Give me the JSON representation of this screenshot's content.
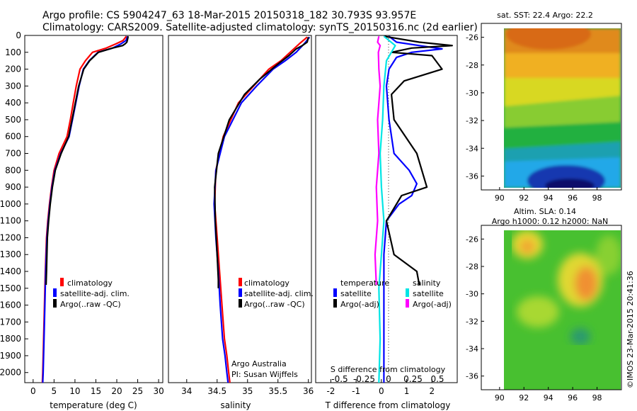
{
  "header": {
    "line1": "Argo profile: CS 5904247_63 18-Mar-2015 20150318_182 30.793S 93.957E",
    "line2": "Climatology: CARS2009. Satellite-adjusted climatology: synTS_20150316.nc (2d earlier)"
  },
  "credit": "©IMOS 23-Mar-2015 20:41:36",
  "chart_data": [
    {
      "type": "line",
      "name": "temperature-profile",
      "xlabel": "temperature (deg C)",
      "ylabel": "",
      "xlim": [
        -2,
        31
      ],
      "ylim": [
        2060,
        0
      ],
      "xticks": [
        0,
        5,
        10,
        15,
        20,
        25,
        30
      ],
      "yticks": [
        0,
        100,
        200,
        300,
        400,
        500,
        600,
        700,
        800,
        900,
        1000,
        1100,
        1200,
        1300,
        1400,
        1500,
        1600,
        1700,
        1800,
        1900,
        2000
      ],
      "legend": [
        "climatology",
        "satellite-adj. clim.",
        "Argo(..raw -QC)"
      ],
      "series": [
        {
          "name": "climatology",
          "color": "#ff0000",
          "x": [
            22.3,
            21.5,
            19.8,
            17.5,
            14.2,
            12.5,
            11.2,
            10.3,
            9.6,
            8.9,
            8.1,
            6.2,
            5.0,
            4.4,
            3.9,
            3.5,
            3.2,
            2.9,
            2.7,
            2.5,
            2.3,
            2.2
          ],
          "y": [
            5,
            30,
            50,
            75,
            100,
            150,
            200,
            300,
            400,
            500,
            600,
            700,
            800,
            900,
            1000,
            1100,
            1200,
            1400,
            1600,
            1800,
            2000,
            2060
          ]
        },
        {
          "name": "satellite-adj. clim.",
          "color": "#0000ff",
          "x": [
            22.6,
            22.2,
            21.0,
            19.0,
            15.5,
            13.4,
            12.0,
            11.0,
            10.2,
            9.4,
            8.6,
            6.6,
            5.2,
            4.5,
            4.0,
            3.6,
            3.3,
            3.0,
            2.8,
            2.6,
            2.4,
            2.3
          ],
          "y": [
            5,
            30,
            50,
            75,
            100,
            150,
            200,
            300,
            400,
            500,
            600,
            700,
            800,
            900,
            1000,
            1100,
            1200,
            1400,
            1600,
            1800,
            2000,
            2060
          ]
        },
        {
          "name": "Argo(..raw -QC)",
          "color": "#000000",
          "x": [
            22.7,
            22.6,
            22.4,
            22.0,
            21.4,
            19.0,
            15.6,
            13.5,
            12.1,
            10.9,
            10.1,
            9.3,
            8.5,
            6.7,
            5.3,
            4.6,
            4.1,
            3.7,
            3.4,
            3.2,
            3.1
          ],
          "y": [
            5,
            20,
            40,
            50,
            60,
            75,
            100,
            150,
            200,
            300,
            400,
            500,
            600,
            700,
            800,
            900,
            1000,
            1100,
            1200,
            1400,
            1480
          ]
        }
      ]
    },
    {
      "type": "line",
      "name": "salinity-profile",
      "xlabel": "salinity",
      "ylabel": "",
      "xlim": [
        33.7,
        36.05
      ],
      "ylim": [
        2060,
        0
      ],
      "xticks": [
        34,
        34.5,
        35,
        35.5,
        36
      ],
      "legend": [
        "climatology",
        "satellite-adj. clim.",
        "Argo(..raw -QC)"
      ],
      "annotation": [
        "Argo Australia",
        "PI: Susan Wijffels"
      ],
      "series": [
        {
          "name": "climatology",
          "color": "#ff0000",
          "x": [
            35.98,
            35.85,
            35.7,
            35.55,
            35.35,
            35.1,
            34.85,
            34.6,
            34.48,
            34.46,
            34.5,
            34.54,
            34.58,
            34.62,
            34.66,
            34.69,
            34.71
          ],
          "y": [
            10,
            50,
            100,
            150,
            200,
            300,
            400,
            600,
            800,
            1000,
            1200,
            1400,
            1600,
            1800,
            1900,
            2000,
            2060
          ]
        },
        {
          "name": "satellite-adj. clim.",
          "color": "#0000ff",
          "x": [
            36.02,
            35.93,
            35.8,
            35.62,
            35.42,
            35.15,
            34.9,
            34.62,
            34.48,
            34.45,
            34.48,
            34.52,
            34.55,
            34.59,
            34.63,
            34.66,
            34.68
          ],
          "y": [
            10,
            50,
            100,
            150,
            200,
            300,
            400,
            600,
            800,
            1000,
            1200,
            1400,
            1600,
            1800,
            1900,
            2000,
            2060
          ]
        },
        {
          "name": "Argo(..raw -QC)",
          "color": "#000000",
          "x": [
            36.0,
            35.98,
            35.9,
            35.8,
            35.68,
            35.5,
            35.2,
            34.95,
            34.7,
            34.52,
            34.46,
            34.47,
            34.5,
            34.52,
            34.52
          ],
          "y": [
            10,
            40,
            60,
            80,
            120,
            170,
            260,
            350,
            500,
            700,
            900,
            1100,
            1300,
            1450,
            1500
          ]
        }
      ]
    },
    {
      "type": "line",
      "name": "difference-profile",
      "xlabel": "T difference from climatology",
      "xlabel_top": "S difference from climatology",
      "xlim": [
        -2.6,
        3.0
      ],
      "xticks": [
        -2,
        -1,
        0,
        1,
        2
      ],
      "xticks_top": [
        -0.5,
        -0.25,
        0,
        0.25,
        0.5
      ],
      "ylim": [
        2060,
        0
      ],
      "legend_temperature": [
        "temperature",
        "satellite",
        "Argo(-adj)"
      ],
      "legend_salinity": [
        "salinity",
        "satellite",
        "Argo(-adj)"
      ],
      "series": [
        {
          "name": "T satellite",
          "color": "#0000ff",
          "x": [
            0.3,
            0.6,
            1.5,
            2.4,
            1.2,
            0.6,
            0.3,
            0.2,
            0.3,
            0.5,
            1.1,
            1.4,
            1.2,
            0.7,
            0.2,
            0.1,
            0.1,
            0.1,
            0.1,
            0.1
          ],
          "y": [
            5,
            40,
            60,
            80,
            100,
            130,
            200,
            300,
            500,
            700,
            800,
            880,
            950,
            1000,
            1100,
            1300,
            1500,
            1700,
            1900,
            2060
          ]
        },
        {
          "name": "T Argo(-adj)",
          "color": "#000000",
          "x": [
            0.1,
            1.5,
            2.8,
            1.2,
            0.4,
            2.0,
            2.4,
            0.9,
            0.4,
            0.5,
            1.4,
            1.8,
            0.8,
            0.2,
            0.5,
            1.4,
            1.5
          ],
          "y": [
            5,
            40,
            60,
            75,
            100,
            120,
            200,
            270,
            350,
            500,
            700,
            900,
            950,
            1100,
            1300,
            1400,
            1480
          ]
        },
        {
          "name": "S satellite",
          "color": "#00e5e5",
          "x": [
            0.1,
            0.55,
            0.2,
            0.1,
            0.05,
            -0.05,
            0.0,
            0.1,
            0.0,
            -0.1,
            -0.05,
            -0.1
          ],
          "y": [
            5,
            60,
            150,
            300,
            500,
            700,
            900,
            1100,
            1300,
            1500,
            1800,
            2060
          ]
        },
        {
          "name": "S Argo(-adj)",
          "color": "#ff00ff",
          "x": [
            -0.1,
            -0.15,
            -0.05,
            -0.12,
            -0.1,
            -0.05,
            -0.15,
            -0.1,
            -0.2,
            -0.15,
            -0.25,
            -0.2
          ],
          "y": [
            5,
            40,
            60,
            100,
            200,
            300,
            500,
            700,
            900,
            1100,
            1300,
            1480
          ]
        }
      ]
    },
    {
      "type": "heatmap",
      "name": "sst-map",
      "title": "sat. SST: 22.4 Argo: 22.2",
      "xlim": [
        88.5,
        100
      ],
      "ylim": [
        -37,
        -25
      ],
      "xticks": [
        90,
        92,
        94,
        96,
        98
      ],
      "yticks": [
        -26,
        -28,
        -30,
        -32,
        -34,
        -36
      ]
    },
    {
      "type": "heatmap",
      "name": "sla-map",
      "title": [
        "Altim. SLA: 0.14",
        "Argo h1000: 0.12 h2000: NaN"
      ],
      "xlim": [
        88.5,
        100
      ],
      "ylim": [
        -37,
        -25
      ],
      "xticks": [
        90,
        92,
        94,
        96,
        98
      ],
      "yticks": [
        -26,
        -28,
        -30,
        -32,
        -34,
        -36
      ]
    }
  ]
}
